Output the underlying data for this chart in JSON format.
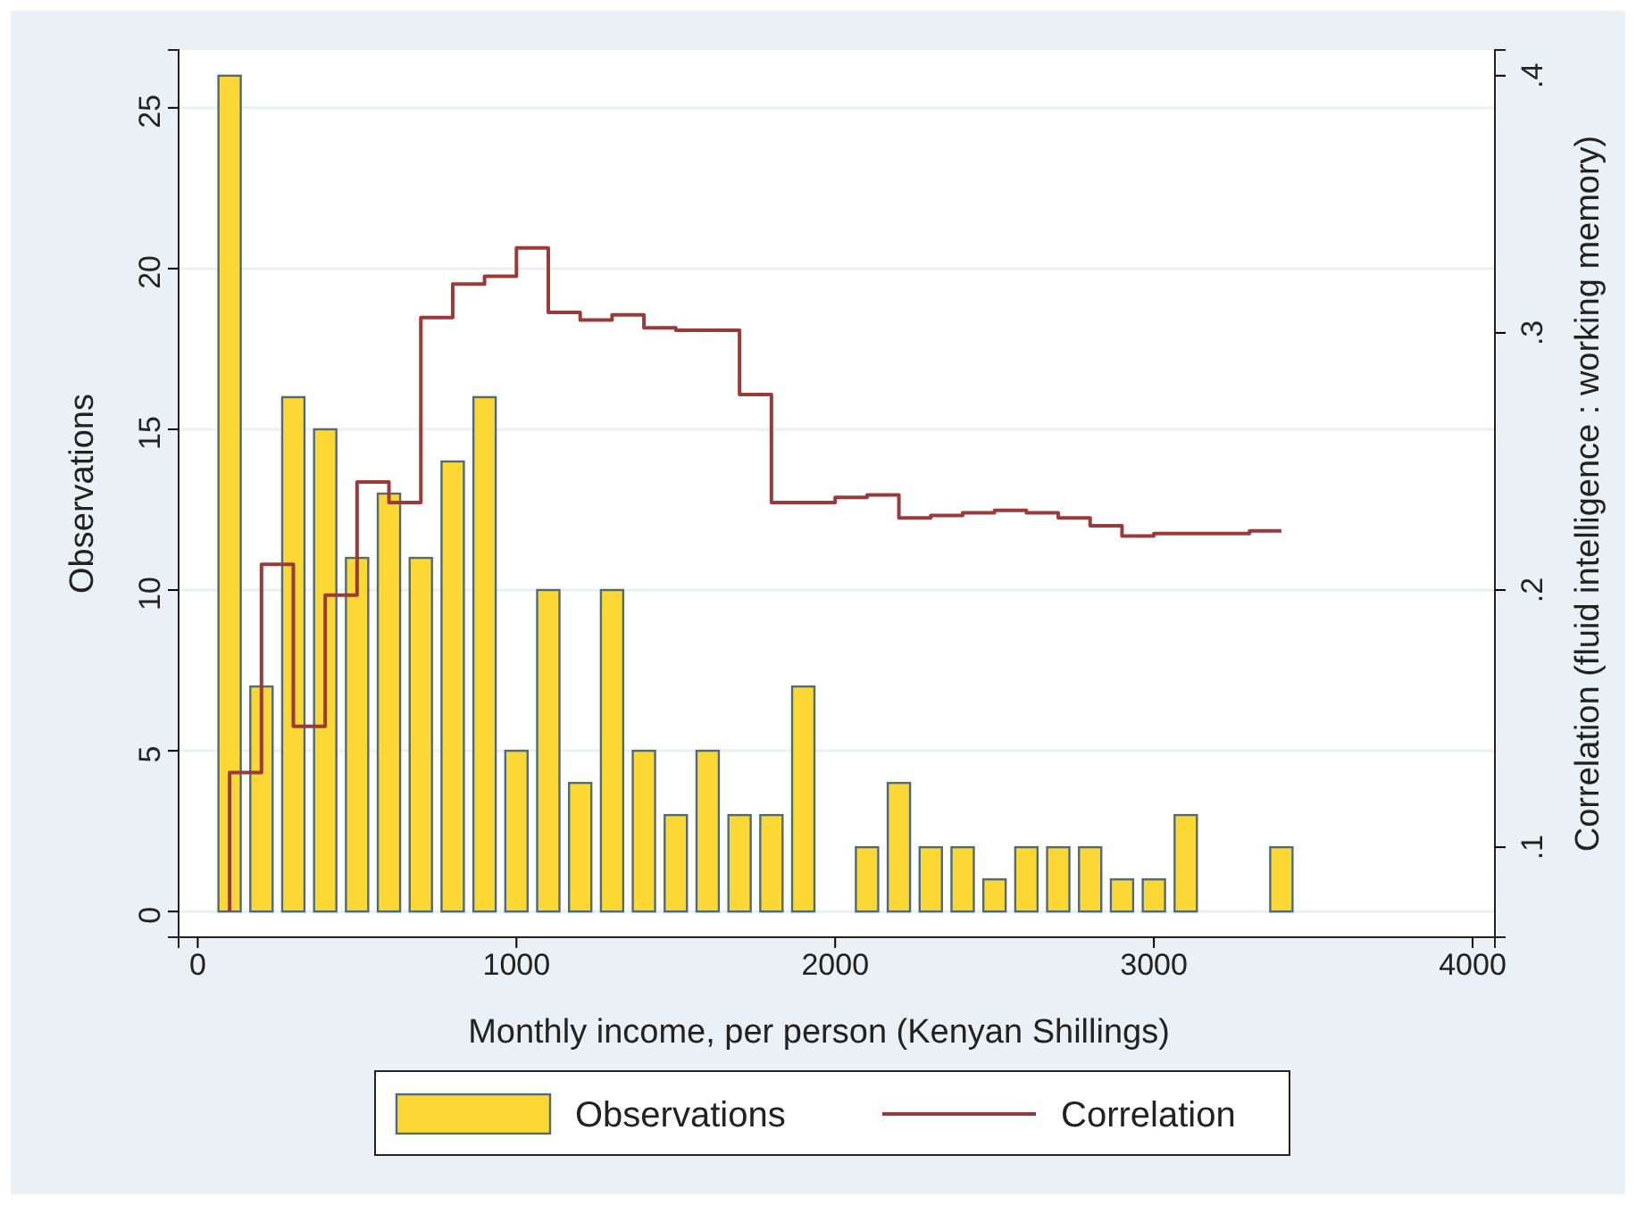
{
  "chart_data": {
    "type": "bar",
    "xlabel": "Monthly income, per person (Kenyan Shillings)",
    "ylabel": "Observations",
    "y2label": "Correlation (fluid intelligence : working memory)",
    "xlim": [
      -60,
      4070
    ],
    "xticks": [
      0,
      1000,
      2000,
      3000,
      4000
    ],
    "ylim": [
      -0.8,
      26.8
    ],
    "yticks": [
      0,
      5,
      10,
      15,
      20,
      25
    ],
    "y2lim": [
      0.065,
      0.41
    ],
    "y2ticks": [
      {
        "value": 0.1,
        "label": ".1"
      },
      {
        "value": 0.2,
        "label": ".2"
      },
      {
        "value": 0.3,
        "label": ".3"
      },
      {
        "value": 0.4,
        "label": ".4"
      }
    ],
    "grid": "y",
    "legend": "bottom",
    "series": [
      {
        "name": "Observations",
        "color": "#fdd835",
        "x": [
          100,
          200,
          300,
          400,
          500,
          600,
          700,
          800,
          900,
          1000,
          1100,
          1200,
          1300,
          1400,
          1500,
          1600,
          1700,
          1800,
          1900,
          2100,
          2200,
          2300,
          2400,
          2500,
          2600,
          2700,
          2800,
          2900,
          3000,
          3100,
          3400
        ],
        "values": [
          26,
          7,
          16,
          15,
          11,
          13,
          11,
          14,
          16,
          5,
          10,
          4,
          10,
          5,
          3,
          5,
          3,
          3,
          7,
          2,
          4,
          2,
          2,
          1,
          2,
          2,
          2,
          1,
          1,
          3,
          2
        ]
      },
      {
        "name": "Correlation",
        "type": "step",
        "axis": "y2",
        "color": "#9b3a3a",
        "x": [
          100,
          100,
          200,
          300,
          400,
          500,
          600,
          700,
          800,
          900,
          1000,
          1100,
          1200,
          1300,
          1400,
          1500,
          1600,
          1700,
          1800,
          1900,
          2000,
          2100,
          2200,
          2300,
          2400,
          2500,
          2600,
          2700,
          2800,
          2900,
          3000,
          3100,
          3200,
          3300,
          3400
        ],
        "values": [
          0.075,
          0.129,
          0.21,
          0.147,
          0.198,
          0.242,
          0.234,
          0.306,
          0.319,
          0.322,
          0.333,
          0.308,
          0.305,
          0.307,
          0.302,
          0.301,
          0.301,
          0.276,
          0.234,
          0.234,
          0.236,
          0.237,
          0.228,
          0.229,
          0.23,
          0.231,
          0.23,
          0.228,
          0.225,
          0.221,
          0.222,
          0.222,
          0.222,
          0.223,
          0.223
        ]
      }
    ]
  }
}
